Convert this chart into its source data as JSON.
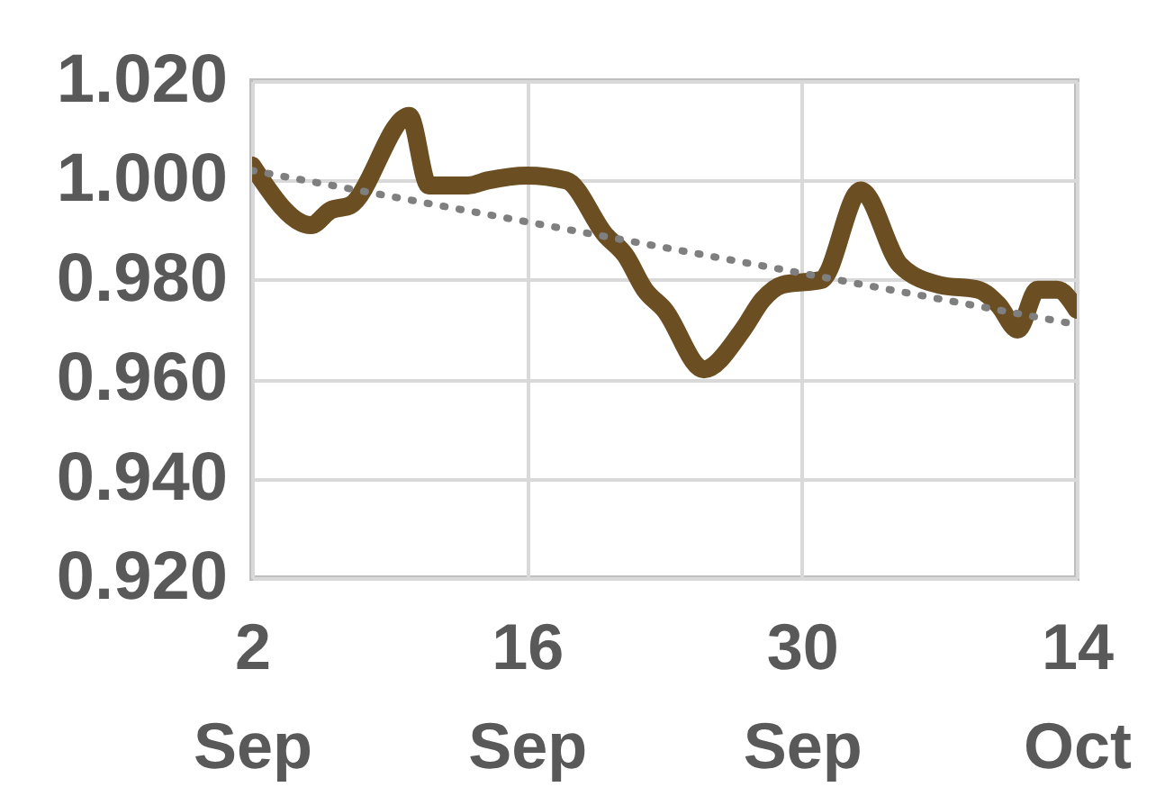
{
  "chart_data": {
    "type": "line",
    "x": [
      "--09-02",
      "--09-05",
      "--09-06",
      "--09-07",
      "--09-10",
      "--09-11",
      "--09-13",
      "--09-14",
      "--09-16",
      "--09-18",
      "--09-20",
      "--09-21",
      "--09-22",
      "--09-23",
      "--09-25",
      "--09-27",
      "--09-28",
      "--09-29",
      "--10-01",
      "--10-03",
      "--10-05",
      "--10-07",
      "--10-09",
      "--10-10",
      "--10-11",
      "--10-12",
      "--10-13",
      "--10-14"
    ],
    "series": [
      {
        "color": "#6b4f23",
        "line_style": "solid",
        "values": [
          1.003,
          0.991,
          0.994,
          0.995,
          1.013,
          0.999,
          0.999,
          1.0,
          1.001,
          1.0,
          0.989,
          0.985,
          0.978,
          0.974,
          0.962,
          0.97,
          0.976,
          0.979,
          0.98,
          0.998,
          0.983,
          0.979,
          0.978,
          0.975,
          0.97,
          0.978,
          0.978,
          0.974
        ]
      },
      {
        "type": "line",
        "color": "#7f7f7f",
        "line_style": "dotted",
        "x": [
          "--09-02",
          "--10-14"
        ],
        "values": [
          1.002,
          0.971
        ]
      }
    ],
    "xlim": [
      "--09-02",
      "--10-14"
    ],
    "xticks": [
      {
        "value": "--09-02",
        "label": "2 Sep"
      },
      {
        "value": "--09-16",
        "label": "16 Sep"
      },
      {
        "value": "--09-30",
        "label": "30 Sep"
      },
      {
        "value": "--10-14",
        "label": "14 Oct"
      }
    ],
    "ylim": [
      0.92,
      1.02
    ],
    "yticks": [
      {
        "value": 0.92,
        "label": "0.920"
      },
      {
        "value": 0.94,
        "label": "0.940"
      },
      {
        "value": 0.96,
        "label": "0.960"
      },
      {
        "value": 0.98,
        "label": "0.980"
      },
      {
        "value": 1.0,
        "label": "1.000"
      },
      {
        "value": 1.02,
        "label": "1.020"
      }
    ],
    "grid": true,
    "marker": "none"
  }
}
